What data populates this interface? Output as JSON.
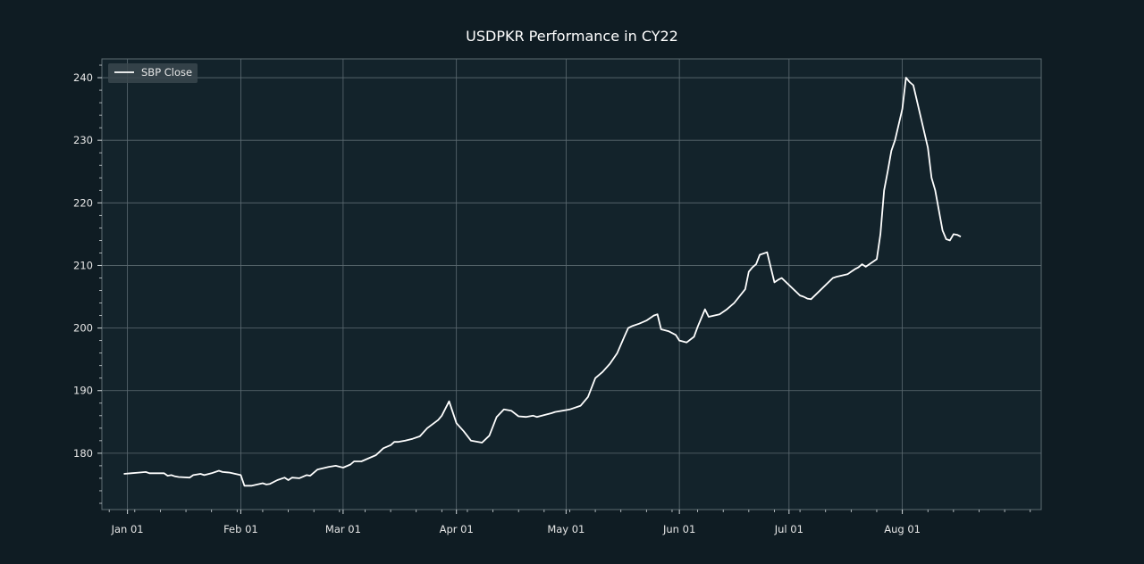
{
  "chart_data": {
    "type": "line",
    "title": "USDPKR Performance in CY22",
    "xlabel": "",
    "ylabel": "",
    "x_range": [
      "2021-12-25",
      "2022-09-08"
    ],
    "ylim": [
      171,
      243
    ],
    "y_ticks": [
      180,
      190,
      200,
      210,
      220,
      230,
      240
    ],
    "x_ticks": [
      {
        "date": "2022-01-01",
        "label": "Jan 01"
      },
      {
        "date": "2022-02-01",
        "label": "Feb 01"
      },
      {
        "date": "2022-03-01",
        "label": "Mar 01"
      },
      {
        "date": "2022-04-01",
        "label": "Apr 01"
      },
      {
        "date": "2022-05-01",
        "label": "May 01"
      },
      {
        "date": "2022-06-01",
        "label": "Jun 01"
      },
      {
        "date": "2022-07-01",
        "label": "Jul 01"
      },
      {
        "date": "2022-08-01",
        "label": "Aug 01"
      }
    ],
    "grid": true,
    "legend_position": "top-left",
    "colors": {
      "background": "#0f1c23",
      "plot_background": "#13232b",
      "line": "#ffffff",
      "grid": "#5d6b72"
    },
    "series": [
      {
        "name": "SBP Close",
        "x": [
          "2021-12-31",
          "2022-01-02",
          "2022-01-04",
          "2022-01-06",
          "2022-01-07",
          "2022-01-08",
          "2022-01-11",
          "2022-01-12",
          "2022-01-13",
          "2022-01-14",
          "2022-01-15",
          "2022-01-18",
          "2022-01-19",
          "2022-01-21",
          "2022-01-22",
          "2022-01-24",
          "2022-01-26",
          "2022-01-27",
          "2022-01-29",
          "2022-02-01",
          "2022-02-02",
          "2022-02-04",
          "2022-02-07",
          "2022-02-08",
          "2022-02-09",
          "2022-02-11",
          "2022-02-13",
          "2022-02-14",
          "2022-02-15",
          "2022-02-17",
          "2022-02-19",
          "2022-02-20",
          "2022-02-22",
          "2022-02-25",
          "2022-02-27",
          "2022-03-01",
          "2022-03-03",
          "2022-03-04",
          "2022-03-06",
          "2022-03-08",
          "2022-03-10",
          "2022-03-12",
          "2022-03-14",
          "2022-03-15",
          "2022-03-16",
          "2022-03-18",
          "2022-03-20",
          "2022-03-22",
          "2022-03-24",
          "2022-03-27",
          "2022-03-28",
          "2022-03-30",
          "2022-04-01",
          "2022-04-03",
          "2022-04-05",
          "2022-04-06",
          "2022-04-07",
          "2022-04-08",
          "2022-04-10",
          "2022-04-12",
          "2022-04-14",
          "2022-04-16",
          "2022-04-18",
          "2022-04-20",
          "2022-04-22",
          "2022-04-23",
          "2022-04-25",
          "2022-04-27",
          "2022-04-28",
          "2022-05-02",
          "2022-05-05",
          "2022-05-07",
          "2022-05-09",
          "2022-05-11",
          "2022-05-13",
          "2022-05-15",
          "2022-05-17",
          "2022-05-18",
          "2022-05-19",
          "2022-05-21",
          "2022-05-23",
          "2022-05-25",
          "2022-05-26",
          "2022-05-27",
          "2022-05-29",
          "2022-05-31",
          "2022-06-01",
          "2022-06-03",
          "2022-06-05",
          "2022-06-06",
          "2022-06-08",
          "2022-06-09",
          "2022-06-12",
          "2022-06-14",
          "2022-06-16",
          "2022-06-19",
          "2022-06-20",
          "2022-06-21",
          "2022-06-22",
          "2022-06-23",
          "2022-06-25",
          "2022-06-27",
          "2022-06-28",
          "2022-06-29",
          "2022-07-04",
          "2022-07-05",
          "2022-07-06",
          "2022-07-07",
          "2022-07-13",
          "2022-07-14",
          "2022-07-17",
          "2022-07-18",
          "2022-07-19",
          "2022-07-20",
          "2022-07-21",
          "2022-07-22",
          "2022-07-25",
          "2022-07-26",
          "2022-07-27",
          "2022-07-28",
          "2022-07-29",
          "2022-07-30",
          "2022-08-01",
          "2022-08-02",
          "2022-08-03",
          "2022-08-04",
          "2022-08-08",
          "2022-08-09",
          "2022-08-10",
          "2022-08-12",
          "2022-08-13",
          "2022-08-14",
          "2022-08-15",
          "2022-08-16",
          "2022-08-17"
        ],
        "values": [
          176.7,
          176.8,
          176.9,
          177.0,
          176.8,
          176.8,
          176.8,
          176.4,
          176.5,
          176.3,
          176.2,
          176.1,
          176.5,
          176.7,
          176.5,
          176.8,
          177.2,
          177.0,
          176.9,
          176.5,
          174.8,
          174.8,
          175.2,
          175.0,
          175.1,
          175.7,
          176.1,
          175.7,
          176.1,
          176.0,
          176.5,
          176.4,
          177.4,
          177.8,
          178.0,
          177.7,
          178.2,
          178.7,
          178.7,
          179.2,
          179.7,
          180.8,
          181.3,
          181.8,
          181.8,
          182.0,
          182.3,
          182.7,
          184.0,
          185.3,
          186.0,
          188.3,
          184.8,
          183.5,
          182.0,
          181.9,
          181.8,
          181.7,
          182.8,
          185.8,
          187.0,
          186.8,
          185.9,
          185.8,
          186.0,
          185.8,
          186.1,
          186.4,
          186.6,
          187.0,
          187.6,
          189.0,
          192.0,
          193.0,
          194.3,
          196.0,
          198.7,
          200.0,
          200.3,
          200.7,
          201.2,
          202.0,
          202.2,
          199.8,
          199.5,
          198.9,
          198.0,
          197.7,
          198.6,
          200.2,
          203.0,
          201.8,
          202.2,
          203.0,
          204.0,
          206.2,
          209.0,
          209.7,
          210.2,
          211.7,
          212.1,
          207.3,
          207.7,
          208.0,
          205.2,
          205.0,
          204.7,
          204.6,
          208.0,
          208.2,
          208.6,
          209.0,
          209.4,
          209.7,
          210.2,
          209.8,
          211.0,
          215.0,
          222.0,
          225.0,
          228.3,
          230.0,
          235.0,
          240.0,
          239.3,
          238.8,
          228.8,
          224.0,
          222.0,
          215.6,
          214.2,
          214.0,
          215.0,
          214.9,
          214.6
        ]
      }
    ]
  }
}
